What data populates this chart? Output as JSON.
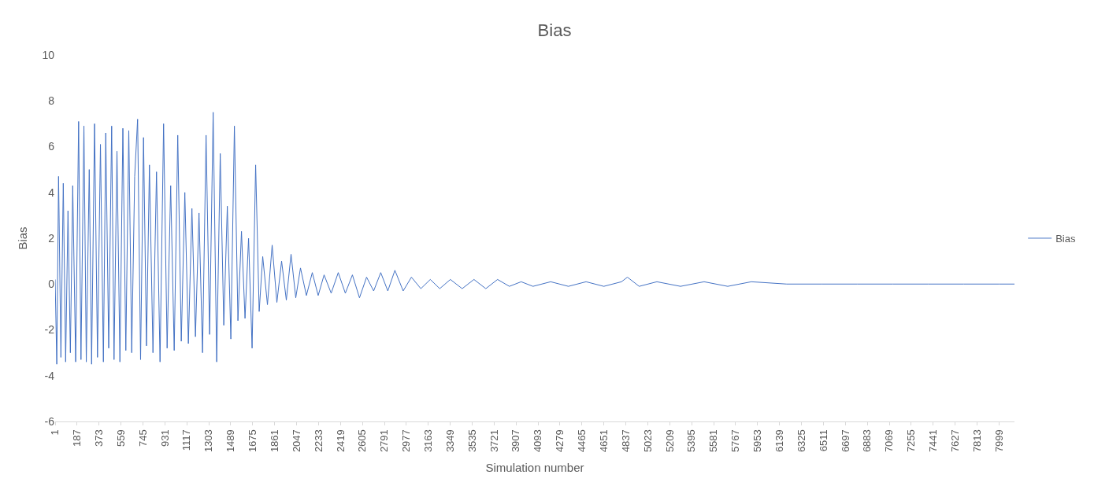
{
  "chart_data": {
    "type": "line",
    "title": "Bias",
    "xlabel": "Simulation number",
    "ylabel": "Bias",
    "xlim": [
      1,
      8130
    ],
    "xticks": [
      1,
      187,
      373,
      559,
      745,
      931,
      1117,
      1303,
      1489,
      1675,
      1861,
      2047,
      2233,
      2419,
      2605,
      2791,
      2977,
      3163,
      3349,
      3535,
      3721,
      3907,
      4093,
      4279,
      4465,
      4651,
      4837,
      5023,
      5209,
      5395,
      5581,
      5767,
      5953,
      6139,
      6325,
      6511,
      6697,
      6883,
      7069,
      7255,
      7441,
      7627,
      7813,
      7999
    ],
    "ylim": [
      -6,
      10
    ],
    "yticks": [
      -6,
      -4,
      -2,
      0,
      2,
      4,
      6,
      8,
      10
    ],
    "grid": false,
    "legend": "right",
    "marker": "none",
    "line_style": "solid",
    "series": [
      {
        "name": "Bias",
        "color": "#4472c4",
        "x": [
          1,
          15,
          30,
          50,
          70,
          90,
          110,
          130,
          150,
          175,
          200,
          220,
          245,
          265,
          290,
          310,
          335,
          360,
          385,
          410,
          430,
          455,
          480,
          500,
          525,
          550,
          575,
          600,
          625,
          650,
          675,
          700,
          725,
          750,
          775,
          800,
          830,
          860,
          890,
          920,
          950,
          980,
          1010,
          1040,
          1070,
          1100,
          1130,
          1160,
          1190,
          1220,
          1250,
          1280,
          1310,
          1340,
          1370,
          1400,
          1430,
          1460,
          1490,
          1520,
          1550,
          1580,
          1610,
          1640,
          1670,
          1700,
          1730,
          1760,
          1800,
          1840,
          1880,
          1920,
          1960,
          2000,
          2040,
          2080,
          2130,
          2180,
          2230,
          2280,
          2340,
          2400,
          2460,
          2520,
          2580,
          2640,
          2700,
          2760,
          2820,
          2880,
          2950,
          3020,
          3100,
          3180,
          3260,
          3350,
          3450,
          3550,
          3650,
          3750,
          3850,
          3950,
          4050,
          4200,
          4350,
          4500,
          4650,
          4800,
          4850,
          4950,
          5100,
          5300,
          5500,
          5700,
          5900,
          6200,
          6500,
          6800,
          7100,
          7400,
          7700,
          8000,
          8130
        ],
        "values": [
          0.2,
          -3.5,
          4.7,
          -3.2,
          4.4,
          -3.4,
          3.2,
          -3.0,
          4.3,
          -3.4,
          7.1,
          -3.3,
          6.9,
          -3.4,
          5.0,
          -3.5,
          7.0,
          -3.2,
          6.1,
          -3.4,
          6.6,
          -2.8,
          6.9,
          -3.3,
          5.8,
          -3.4,
          6.8,
          -2.9,
          6.7,
          -3.0,
          4.7,
          7.2,
          -3.3,
          6.4,
          -2.7,
          5.2,
          -3.0,
          4.9,
          -3.4,
          7.0,
          -2.8,
          4.3,
          -2.9,
          6.5,
          -2.5,
          4.0,
          -2.6,
          3.3,
          -2.3,
          3.1,
          -3.0,
          6.5,
          -2.2,
          7.5,
          -3.4,
          5.7,
          -1.8,
          3.4,
          -2.4,
          6.9,
          -1.6,
          2.3,
          -1.5,
          2.0,
          -2.8,
          5.2,
          -1.2,
          1.2,
          -0.9,
          1.7,
          -0.8,
          1.0,
          -0.7,
          1.3,
          -0.6,
          0.7,
          -0.5,
          0.5,
          -0.5,
          0.4,
          -0.4,
          0.5,
          -0.4,
          0.4,
          -0.6,
          0.3,
          -0.3,
          0.5,
          -0.3,
          0.6,
          -0.3,
          0.3,
          -0.2,
          0.2,
          -0.2,
          0.2,
          -0.2,
          0.2,
          -0.2,
          0.2,
          -0.1,
          0.1,
          -0.1,
          0.1,
          -0.1,
          0.1,
          -0.1,
          0.1,
          0.3,
          -0.1,
          0.1,
          -0.1,
          0.1,
          -0.1,
          0.1,
          0.0,
          0.0,
          0.0,
          0.0,
          0.0,
          0.0,
          0.0,
          0.0
        ]
      }
    ]
  }
}
